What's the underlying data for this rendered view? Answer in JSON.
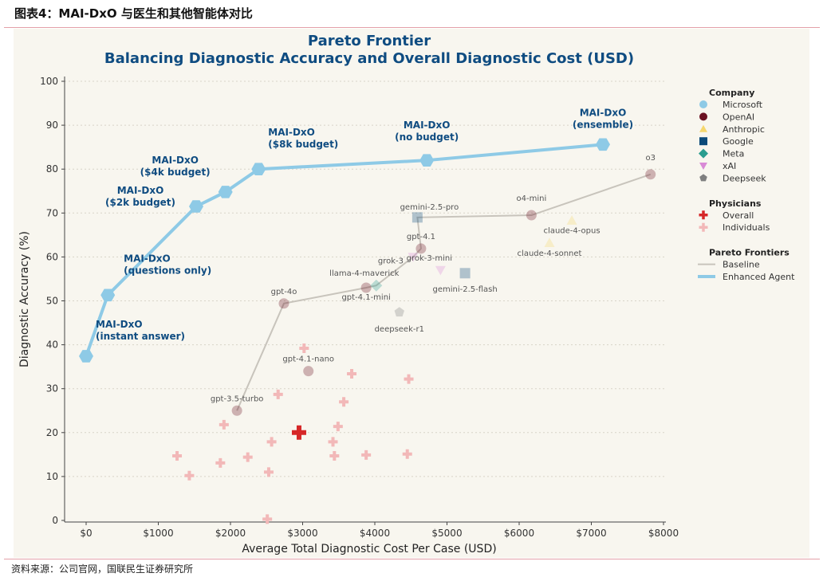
{
  "header": "图表4：MAI-DxO 与医生和其他智能体对比",
  "footer": "资料来源：公司官网，国联民生证券研究所",
  "chart_data": {
    "type": "scatter",
    "title": "Pareto Frontier",
    "subtitle": "Balancing Diagnostic Accuracy and Overall Diagnostic Cost (USD)",
    "xlabel": "Average Total Diagnostic Cost Per Case (USD)",
    "ylabel": "Diagnostic Accuracy (%)",
    "xlim": [
      -300,
      8300
    ],
    "ylim": [
      0,
      100
    ],
    "xticks": [
      0,
      1000,
      2000,
      3000,
      4000,
      5000,
      6000,
      7000,
      8000
    ],
    "xtick_labels": [
      "$0",
      "$1000",
      "$2000",
      "$3000",
      "$4000",
      "$5000",
      "$6000",
      "$7000",
      "$8000"
    ],
    "yticks": [
      0,
      10,
      20,
      30,
      40,
      50,
      60,
      70,
      80,
      90,
      100
    ],
    "ytick_labels": [
      "0",
      "10",
      "20",
      "30",
      "40",
      "50",
      "60",
      "70",
      "80",
      "90",
      "100"
    ],
    "grid": "horizontal-dotted",
    "legend": {
      "placement": "right",
      "sections": [
        {
          "title": "Company",
          "items": [
            {
              "label": "Microsoft",
              "marker": "circle",
              "color": "#8ecae6"
            },
            {
              "label": "OpenAI",
              "marker": "circle",
              "color": "#6b1222"
            },
            {
              "label": "Anthropic",
              "marker": "triangle-up",
              "color": "#f5d76e"
            },
            {
              "label": "Google",
              "marker": "square",
              "color": "#0b4a7a"
            },
            {
              "label": "Meta",
              "marker": "diamond",
              "color": "#2a9d8f"
            },
            {
              "label": "xAI",
              "marker": "triangle-down",
              "color": "#d98ad6"
            },
            {
              "label": "Deepseek",
              "marker": "pentagon",
              "color": "#7f7f7f"
            }
          ]
        },
        {
          "title": "Physicians",
          "items": [
            {
              "label": "Overall",
              "marker": "plus",
              "color": "#d62728"
            },
            {
              "label": "Individuals",
              "marker": "plus",
              "color": "#f2b8b8"
            }
          ]
        },
        {
          "title": "Pareto Frontiers",
          "items": [
            {
              "label": "Baseline",
              "marker": "line",
              "color": "#c8c4bc"
            },
            {
              "label": "Enhanced Agent",
              "marker": "thickline",
              "color": "#8ecae6"
            }
          ]
        }
      ]
    },
    "enhanced_agent": [
      {
        "label": "MAI-DxO\n(instant answer)",
        "x": 0,
        "y": 37.4
      },
      {
        "label": "MAI-DxO\n(questions only)",
        "x": 300,
        "y": 51.3
      },
      {
        "label": "MAI-DxO\n($2k budget)",
        "x": 1525,
        "y": 71.5
      },
      {
        "label": "MAI-DxO\n($4k budget)",
        "x": 1930,
        "y": 74.8
      },
      {
        "label": "MAI-DxO\n($8k budget)",
        "x": 2390,
        "y": 80.0
      },
      {
        "label": "MAI-DxO\n(no budget)",
        "x": 4720,
        "y": 82.0
      },
      {
        "label": "MAI-DxO\n(ensemble)",
        "x": 7160,
        "y": 85.6
      }
    ],
    "baseline_frontier": [
      "gpt-3.5-turbo",
      "gpt-4o",
      "gpt-4.1-mini",
      "llama-4-maverick",
      "grok-3",
      "gpt-4.1",
      "gemini-2.5-pro",
      "o4-mini",
      "o3"
    ],
    "models": [
      {
        "label": "gpt-3.5-turbo",
        "company": "OpenAI",
        "x": 2090,
        "y": 25.0
      },
      {
        "label": "gpt-4o",
        "company": "OpenAI",
        "x": 2740,
        "y": 49.4
      },
      {
        "label": "gpt-4.1-mini",
        "company": "OpenAI",
        "x": 3880,
        "y": 53.0
      },
      {
        "label": "llama-4-maverick",
        "company": "Meta",
        "x": 4020,
        "y": 53.5
      },
      {
        "label": "grok-3",
        "company": "xAI",
        "x": 4530,
        "y": 60.0
      },
      {
        "label": "gpt-4.1",
        "company": "OpenAI",
        "x": 4640,
        "y": 61.9
      },
      {
        "label": "gemini-2.5-pro",
        "company": "Google",
        "x": 4590,
        "y": 69.0
      },
      {
        "label": "o4-mini",
        "company": "OpenAI",
        "x": 6170,
        "y": 69.5
      },
      {
        "label": "o3",
        "company": "OpenAI",
        "x": 7820,
        "y": 78.8
      },
      {
        "label": "claude-4-opus",
        "company": "Anthropic",
        "x": 6730,
        "y": 68.3
      },
      {
        "label": "claude-4-sonnet",
        "company": "Anthropic",
        "x": 6420,
        "y": 63.2
      },
      {
        "label": "grok-3-mini",
        "company": "xAI",
        "x": 4910,
        "y": 57.0
      },
      {
        "label": "gemini-2.5-flash",
        "company": "Google",
        "x": 5250,
        "y": 56.3
      },
      {
        "label": "deepseek-r1",
        "company": "Deepseek",
        "x": 4340,
        "y": 47.4
      },
      {
        "label": "gpt-4.1-nano",
        "company": "OpenAI",
        "x": 3080,
        "y": 34.0
      }
    ],
    "physicians_overall": {
      "x": 2950,
      "y": 20.0
    },
    "physicians_individuals": [
      {
        "x": 3020,
        "y": 39.2
      },
      {
        "x": 3680,
        "y": 33.4
      },
      {
        "x": 4470,
        "y": 32.2
      },
      {
        "x": 2660,
        "y": 28.7
      },
      {
        "x": 3570,
        "y": 27.0
      },
      {
        "x": 1910,
        "y": 21.8
      },
      {
        "x": 3490,
        "y": 21.4
      },
      {
        "x": 2570,
        "y": 17.9
      },
      {
        "x": 3420,
        "y": 17.9
      },
      {
        "x": 1260,
        "y": 14.7
      },
      {
        "x": 2240,
        "y": 14.4
      },
      {
        "x": 1860,
        "y": 13.1
      },
      {
        "x": 3440,
        "y": 14.7
      },
      {
        "x": 3880,
        "y": 14.9
      },
      {
        "x": 4450,
        "y": 15.1
      },
      {
        "x": 1430,
        "y": 10.2
      },
      {
        "x": 2530,
        "y": 11.0
      },
      {
        "x": 2510,
        "y": 0.3
      }
    ]
  }
}
